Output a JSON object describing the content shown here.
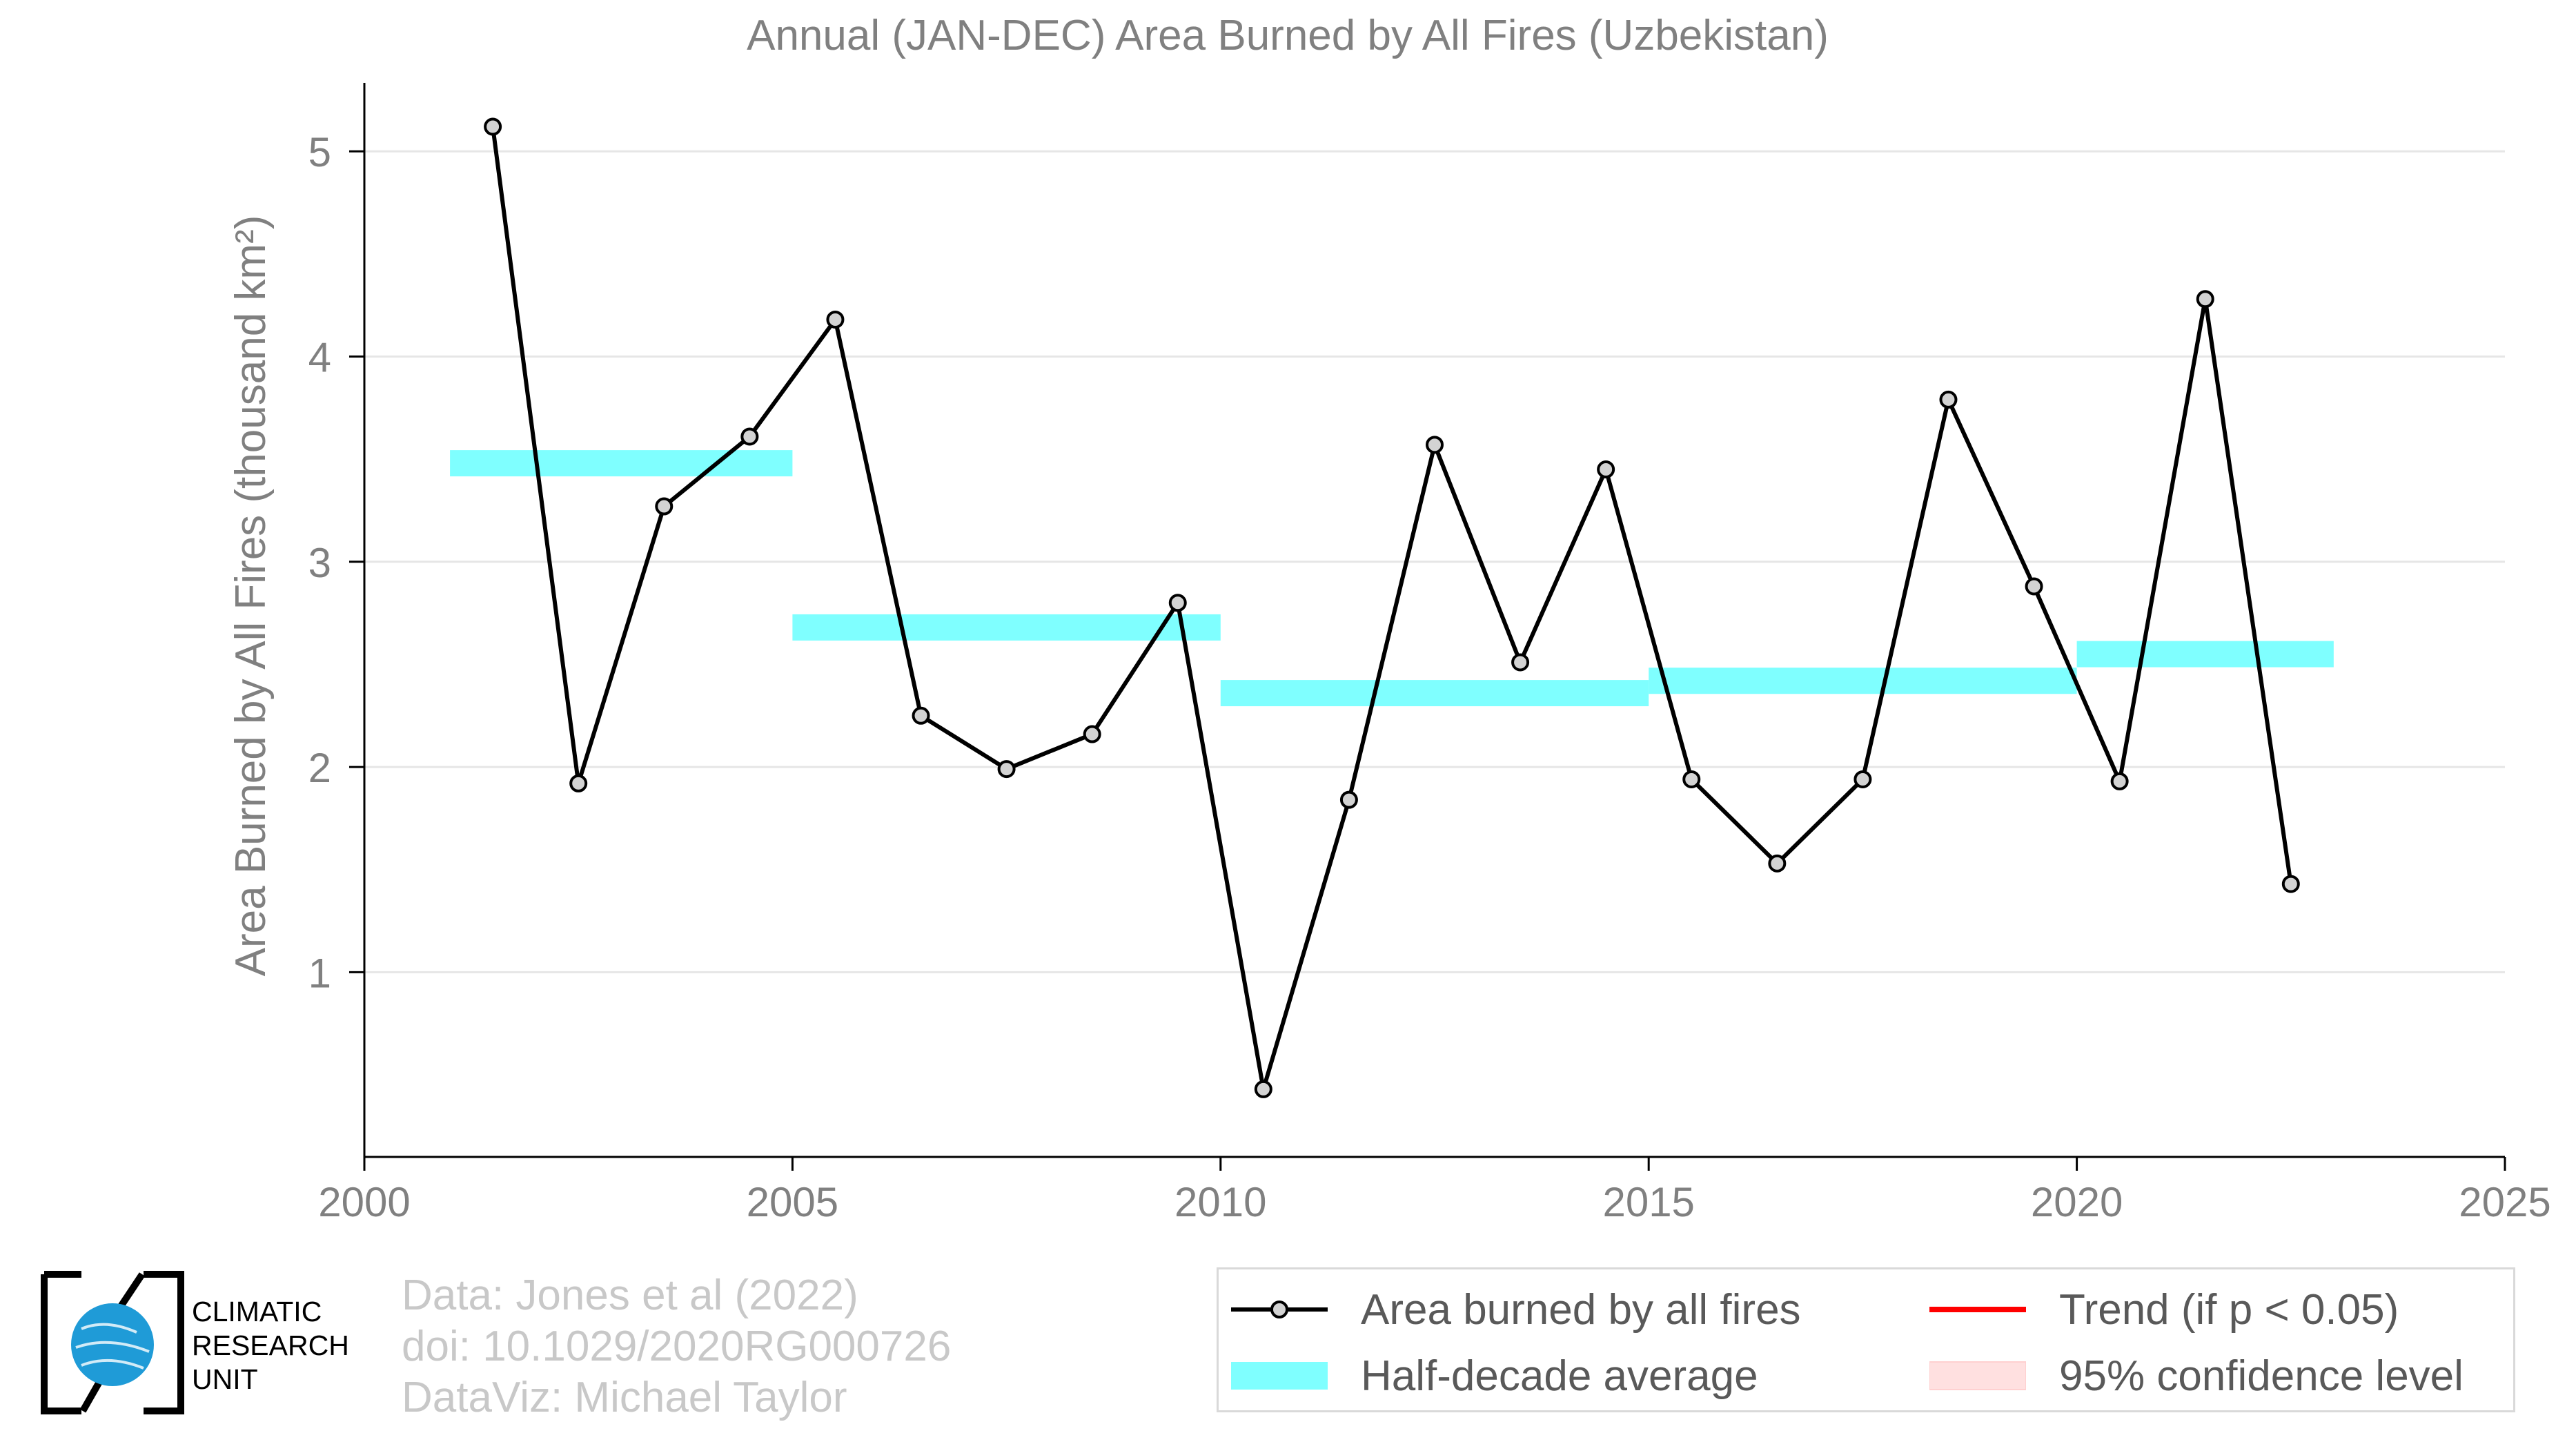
{
  "chart_data": {
    "type": "line",
    "title": "Annual (JAN-DEC) Area Burned by All Fires (Uzbekistan)",
    "ylabel": "Area Burned by All Fires (thousand km²)",
    "xlabel": "",
    "xlim": [
      2000,
      2025
    ],
    "ylim": [
      0.1,
      5.3
    ],
    "xticks": [
      2000,
      2005,
      2010,
      2015,
      2020,
      2025
    ],
    "yticks": [
      1,
      2,
      3,
      4,
      5
    ],
    "grid": "horizontal",
    "series": [
      {
        "name": "Area burned by all fires",
        "color": "#000000",
        "marker_fill": "#d3d3d3",
        "x": [
          2001.5,
          2002.5,
          2003.5,
          2004.5,
          2005.5,
          2006.5,
          2007.5,
          2008.5,
          2009.5,
          2010.5,
          2011.5,
          2012.5,
          2013.5,
          2014.5,
          2015.5,
          2016.5,
          2017.5,
          2018.5,
          2019.5,
          2020.5,
          2021.5,
          2022.5
        ],
        "y": [
          5.12,
          1.92,
          3.27,
          3.61,
          4.18,
          2.25,
          1.99,
          2.16,
          2.8,
          0.43,
          1.84,
          3.57,
          2.51,
          3.45,
          1.94,
          1.53,
          1.94,
          3.79,
          2.88,
          1.93,
          4.28,
          1.43
        ]
      }
    ],
    "half_decade_averages": {
      "name": "Half-decade average",
      "color": "#7fffff",
      "segments": [
        {
          "x0": 2001,
          "x1": 2005,
          "y": 3.48
        },
        {
          "x0": 2005,
          "x1": 2010,
          "y": 2.68
        },
        {
          "x0": 2010,
          "x1": 2015,
          "y": 2.36
        },
        {
          "x0": 2015,
          "x1": 2020,
          "y": 2.42
        },
        {
          "x0": 2020,
          "x1": 2023,
          "y": 2.55
        }
      ]
    },
    "legend": {
      "placement": "bottom-right",
      "items": [
        {
          "label": "Area burned by all fires",
          "kind": "line-marker",
          "color": "#000000"
        },
        {
          "label": "Trend (if p < 0.05)",
          "kind": "line",
          "color": "#ff0000"
        },
        {
          "label": "Half-decade average",
          "kind": "band",
          "color": "#7fffff"
        },
        {
          "label": "95% confidence level",
          "kind": "band",
          "color": "#ffe0e0"
        }
      ]
    }
  },
  "credits": {
    "line1": "Data: Jones et al (2022)",
    "line2": "doi: 10.1029/2020RG000726",
    "line3": "DataViz: Michael Taylor"
  },
  "logo": {
    "line1": "CLIMATIC",
    "line2": "RESEARCH",
    "line3": "UNIT"
  },
  "colors": {
    "axis_text": "#808080",
    "grid": "#e6e6e6",
    "credits": "#c8c8c8"
  }
}
